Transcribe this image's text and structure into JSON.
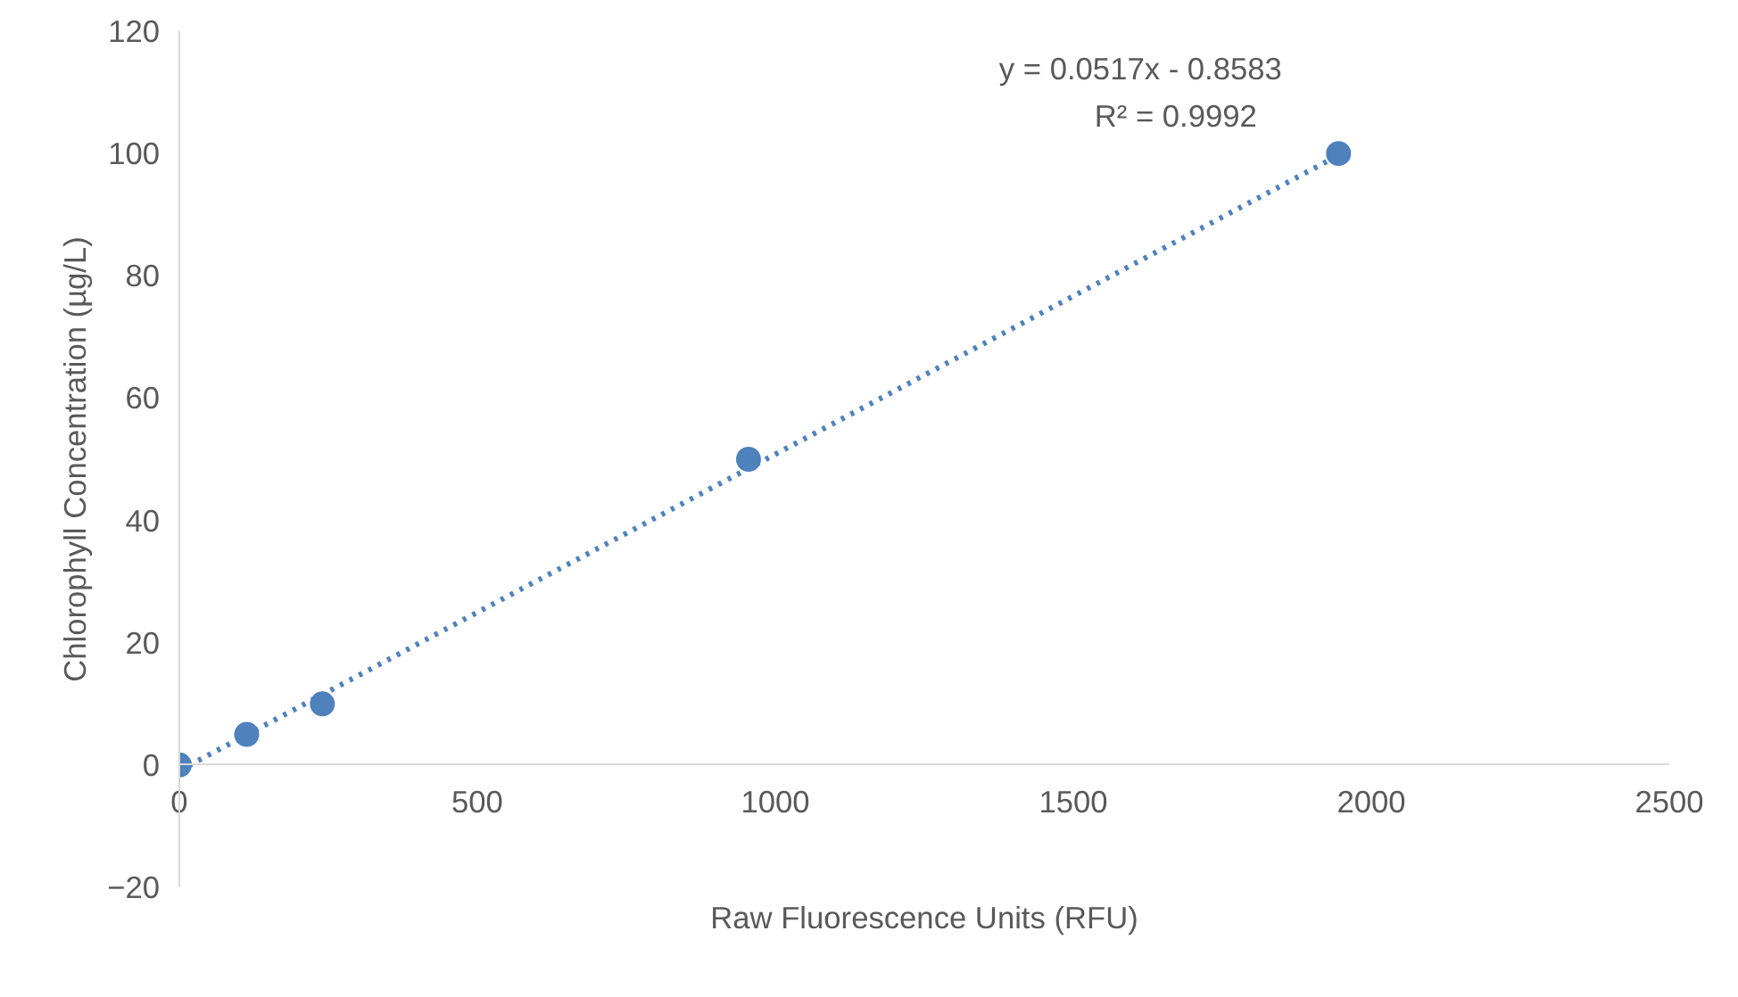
{
  "chart_data": {
    "type": "scatter",
    "xlabel": "Raw Fluorescence Units (RFU)",
    "ylabel": "Chlorophyll Concentration (µg/L)",
    "xlim": [
      0,
      2500
    ],
    "ylim": [
      -20,
      120
    ],
    "xticks": [
      0,
      500,
      1000,
      1500,
      2000,
      2500
    ],
    "yticks": [
      -20,
      0,
      20,
      40,
      60,
      80,
      100,
      120
    ],
    "grid": false,
    "annotations": [
      "y = 0.0517x - 0.8583",
      "R² = 0.9992"
    ],
    "series": [
      {
        "marker": "circle",
        "color": "#4f81bd",
        "x": [
          0,
          113,
          240,
          955,
          1945
        ],
        "values": [
          0,
          5,
          10,
          50,
          100
        ]
      },
      {
        "type": "line",
        "line_style": "dotted",
        "color": "#4f81bd",
        "x": [
          0,
          1945
        ],
        "values": [
          -0.9,
          99.7
        ]
      }
    ]
  }
}
